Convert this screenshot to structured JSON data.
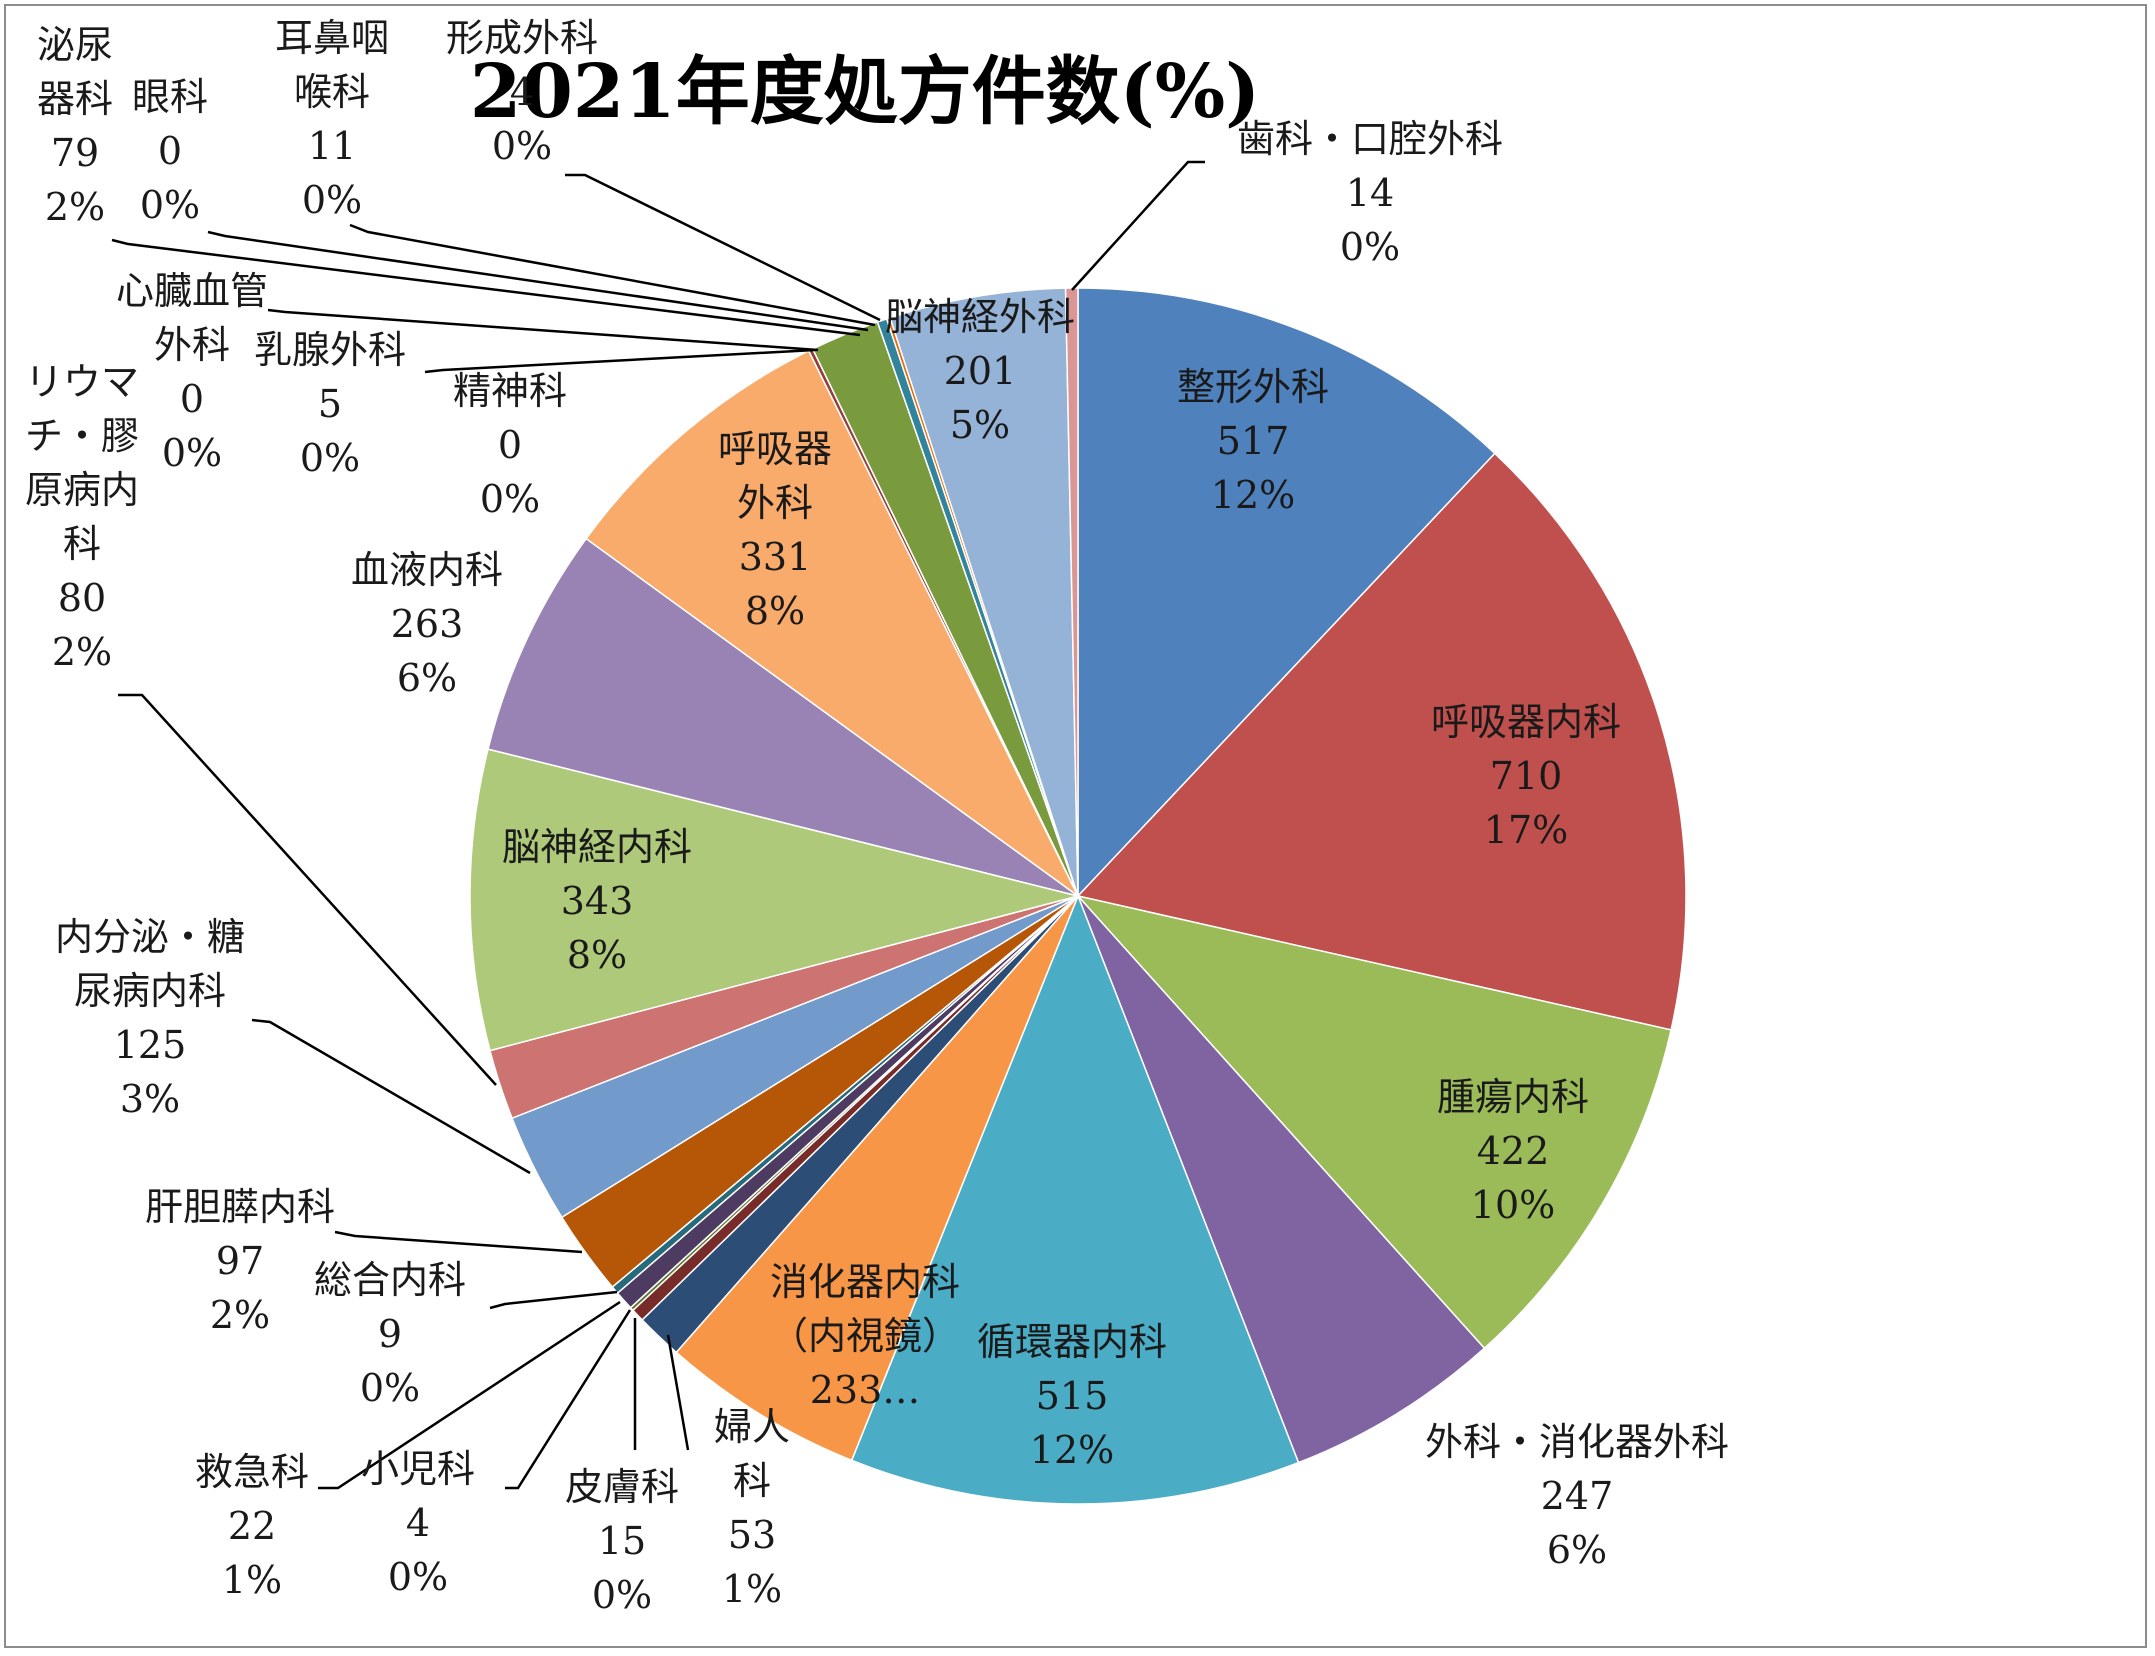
{
  "chart_data": {
    "type": "pie",
    "title": "2021年度処方件数(%)",
    "slices": [
      {
        "category": "整形外科",
        "value": 517,
        "percent": "12%",
        "color": "#4F81BD"
      },
      {
        "category": "呼吸器内科",
        "value": 710,
        "percent": "17%",
        "color": "#C0504D"
      },
      {
        "category": "腫瘍内科",
        "value": 422,
        "percent": "10%",
        "color": "#9BBB59"
      },
      {
        "category": "外科・消化器外科",
        "value": 247,
        "percent": "6%",
        "color": "#8064A2"
      },
      {
        "category": "循環器内科",
        "value": 515,
        "percent": "12%",
        "color": "#4BACC6"
      },
      {
        "category": "消化器内科（内視鏡）",
        "value": 233,
        "percent": "",
        "label_value": "233…",
        "color": "#F79646"
      },
      {
        "category": "婦人科",
        "value": 53,
        "percent": "1%",
        "color": "#2C4D75"
      },
      {
        "category": "皮膚科",
        "value": 15,
        "percent": "0%",
        "color": "#772C2A"
      },
      {
        "category": "小児科",
        "value": 4,
        "percent": "0%",
        "color": "#5F7530"
      },
      {
        "category": "救急科",
        "value": 22,
        "percent": "1%",
        "color": "#4D3B62"
      },
      {
        "category": "総合内科",
        "value": 9,
        "percent": "0%",
        "color": "#276A7C"
      },
      {
        "category": "肝胆膵内科",
        "value": 97,
        "percent": "2%",
        "color": "#B65708"
      },
      {
        "category": "内分泌・糖尿病内科",
        "value": 125,
        "percent": "3%",
        "color": "#729ACA"
      },
      {
        "category": "リウマチ・膠原病内科",
        "value": 80,
        "percent": "2%",
        "color": "#CD7371"
      },
      {
        "category": "脳神経内科",
        "value": 343,
        "percent": "8%",
        "color": "#AFC97A"
      },
      {
        "category": "血液内科",
        "value": 263,
        "percent": "6%",
        "color": "#9983B5"
      },
      {
        "category": "呼吸器外科",
        "value": 331,
        "percent": "8%",
        "color": "#F9AB6B"
      },
      {
        "category": "精神科",
        "value": 0,
        "percent": "0%",
        "color": "#3A6496"
      },
      {
        "category": "乳腺外科",
        "value": 5,
        "percent": "0%",
        "color": "#963C3A"
      },
      {
        "category": "心臓血管外科",
        "value": 0,
        "percent": "0%",
        "color": "#789440"
      },
      {
        "category": "泌尿器科",
        "value": 79,
        "percent": "2%",
        "color": "#7A9A3E"
      },
      {
        "category": "眼科",
        "value": 0,
        "percent": "0%",
        "color": "#604A7B"
      },
      {
        "category": "耳鼻咽喉科",
        "value": 11,
        "percent": "0%",
        "color": "#31849B"
      },
      {
        "category": "形成外科",
        "value": 4,
        "percent": "0%",
        "color": "#E46C0A"
      },
      {
        "category": "脳神経外科",
        "value": 201,
        "percent": "5%",
        "color": "#95B3D7"
      },
      {
        "category": "歯科・口腔外科",
        "value": 14,
        "percent": "0%",
        "color": "#D99694"
      }
    ],
    "labels": {
      "seikei": [
        "整形外科",
        "517",
        "12%"
      ],
      "kokyuki_naika": [
        "呼吸器内科",
        "710",
        "17%"
      ],
      "shuyo": [
        "腫瘍内科",
        "422",
        "10%"
      ],
      "geka": [
        "外科・消化器外科",
        "247",
        "6%"
      ],
      "junkanki": [
        "循環器内科",
        "515",
        "12%"
      ],
      "shokaki": [
        "消化器内科",
        "（内視鏡）",
        "233…"
      ],
      "fujinka": [
        "婦人",
        "科",
        "53",
        "1%"
      ],
      "hifuka": [
        "皮膚科",
        "15",
        "0%"
      ],
      "shonika": [
        "小児科",
        "4",
        "0%"
      ],
      "kyukyu": [
        "救急科",
        "22",
        "1%"
      ],
      "sogo": [
        "総合内科",
        "9",
        "0%"
      ],
      "kantan": [
        "肝胆膵内科",
        "97",
        "2%"
      ],
      "naibunpi": [
        "内分泌・糖",
        "尿病内科",
        "125",
        "3%"
      ],
      "rheuma": [
        "リウマ",
        "チ・膠",
        "原病内",
        "科",
        "80",
        "2%"
      ],
      "noshinkei_naika": [
        "脳神経内科",
        "343",
        "8%"
      ],
      "ketsueki": [
        "血液内科",
        "263",
        "6%"
      ],
      "kokyuki_geka": [
        "呼吸器",
        "外科",
        "331",
        "8%"
      ],
      "seishin": [
        "精神科",
        "0",
        "0%"
      ],
      "nyusen": [
        "乳腺外科",
        "5",
        "0%"
      ],
      "shinzo": [
        "心臓血管",
        "外科",
        "0",
        "0%"
      ],
      "hinyoki": [
        "泌尿",
        "器科",
        "79",
        "2%"
      ],
      "ganka": [
        "眼科",
        "0",
        "0%"
      ],
      "jibi": [
        "耳鼻咽",
        "喉科",
        "11",
        "0%"
      ],
      "keisei": [
        "形成外科",
        "4",
        "0%"
      ],
      "noshinkei_geka": [
        "脳神経外科",
        "201",
        "5%"
      ],
      "shika": [
        "歯科・口腔外科",
        "14",
        "0%"
      ]
    }
  }
}
